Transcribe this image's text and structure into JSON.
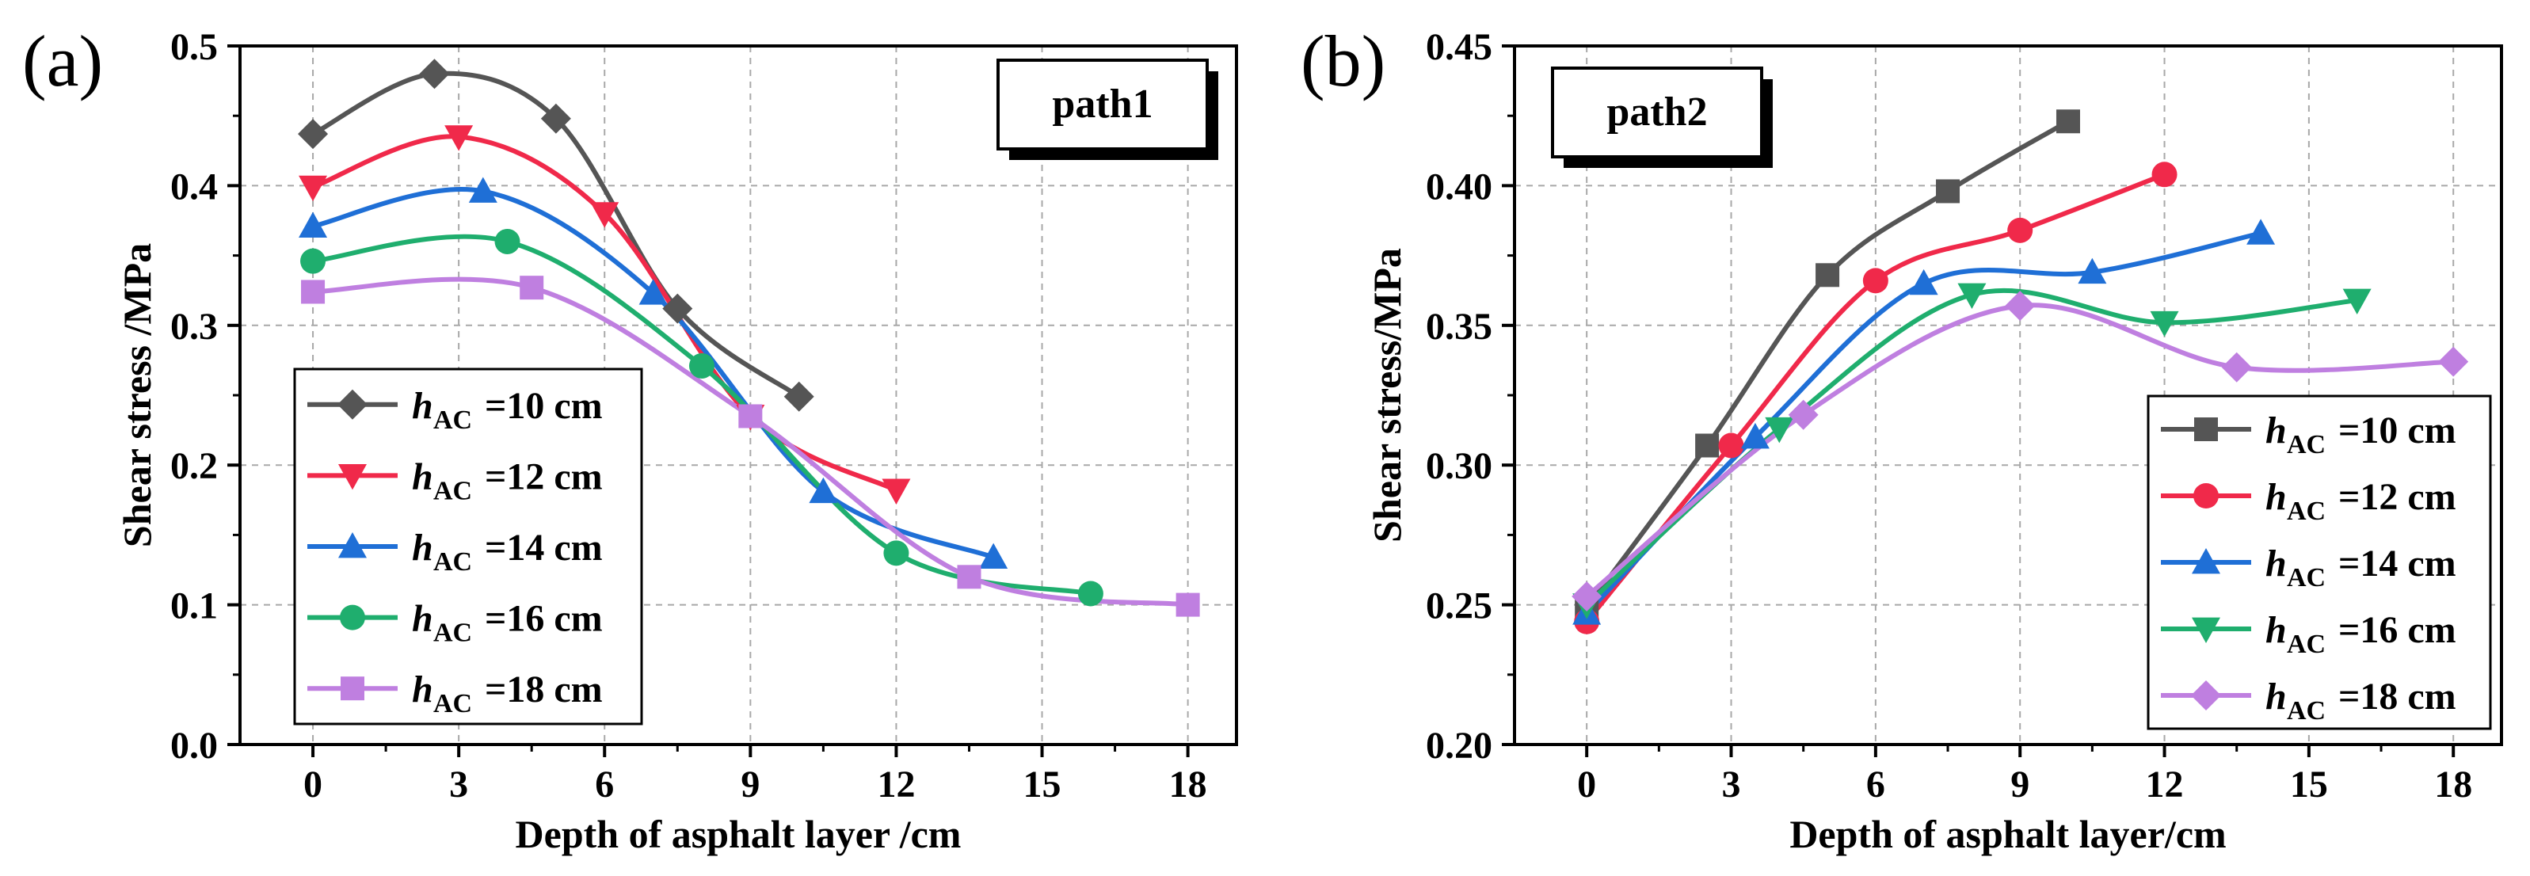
{
  "chart_data": [
    {
      "type": "line",
      "panel_label": "(a)",
      "path_label": "path1",
      "xlabel": "Depth of asphalt layer /cm",
      "ylabel": "Shear stress /MPa",
      "xlim": [
        -1.5,
        19.0
      ],
      "ylim": [
        0.0,
        0.5
      ],
      "xticks": [
        0,
        3,
        6,
        9,
        12,
        15,
        18
      ],
      "yticks": [
        0.0,
        0.1,
        0.2,
        0.3,
        0.4,
        0.5
      ],
      "ytick_labels": [
        "0.0",
        "0.1",
        "0.2",
        "0.3",
        "0.4",
        "0.5"
      ],
      "grid": true,
      "legend_position": "lower-left",
      "series": [
        {
          "name_main": "h",
          "name_sub": "AC",
          "name_rest": "=10 cm",
          "color": "#555555",
          "marker": "diamond",
          "x": [
            0,
            2.5,
            5,
            7.5,
            10
          ],
          "y": [
            0.437,
            0.48,
            0.448,
            0.312,
            0.249
          ]
        },
        {
          "name_main": "h",
          "name_sub": "AC",
          "name_rest": "=12 cm",
          "color": "#f0294a",
          "marker": "triangle-down",
          "x": [
            0,
            3,
            6,
            9,
            12
          ],
          "y": [
            0.399,
            0.435,
            0.38,
            0.235,
            0.182
          ]
        },
        {
          "name_main": "h",
          "name_sub": "AC",
          "name_rest": "=14 cm",
          "color": "#1f6fd6",
          "marker": "triangle-up",
          "x": [
            0,
            3.5,
            7,
            10.5,
            14
          ],
          "y": [
            0.371,
            0.396,
            0.323,
            0.181,
            0.134
          ]
        },
        {
          "name_main": "h",
          "name_sub": "AC",
          "name_rest": "=16 cm",
          "color": "#1fae6e",
          "marker": "circle",
          "x": [
            0,
            4,
            8,
            12,
            16
          ],
          "y": [
            0.346,
            0.36,
            0.271,
            0.137,
            0.108
          ]
        },
        {
          "name_main": "h",
          "name_sub": "AC",
          "name_rest": "=18 cm",
          "color": "#bf7fe0",
          "marker": "square",
          "x": [
            0,
            4.5,
            9,
            13.5,
            18
          ],
          "y": [
            0.324,
            0.327,
            0.235,
            0.12,
            0.1
          ]
        }
      ]
    },
    {
      "type": "line",
      "panel_label": "(b)",
      "path_label": "path2",
      "xlabel": "Depth of asphalt layer/cm",
      "ylabel": "Shear stress/MPa",
      "xlim": [
        -1.5,
        19.0
      ],
      "ylim": [
        0.2,
        0.45
      ],
      "xticks": [
        0,
        3,
        6,
        9,
        12,
        15,
        18
      ],
      "yticks": [
        0.2,
        0.25,
        0.3,
        0.35,
        0.4,
        0.45
      ],
      "ytick_labels": [
        "0.20",
        "0.25",
        "0.30",
        "0.35",
        "0.40",
        "0.45"
      ],
      "grid": true,
      "legend_position": "lower-right",
      "series": [
        {
          "name_main": "h",
          "name_sub": "AC",
          "name_rest": "=10 cm",
          "color": "#555555",
          "marker": "square",
          "x": [
            0,
            2.5,
            5,
            7.5,
            10
          ],
          "y": [
            0.249,
            0.307,
            0.368,
            0.398,
            0.423
          ]
        },
        {
          "name_main": "h",
          "name_sub": "AC",
          "name_rest": "=12 cm",
          "color": "#f0294a",
          "marker": "circle",
          "x": [
            0,
            3,
            6,
            9,
            12
          ],
          "y": [
            0.244,
            0.307,
            0.366,
            0.384,
            0.404
          ]
        },
        {
          "name_main": "h",
          "name_sub": "AC",
          "name_rest": "=14 cm",
          "color": "#1f6fd6",
          "marker": "triangle-up",
          "x": [
            0,
            3.5,
            7,
            10.5,
            14
          ],
          "y": [
            0.247,
            0.31,
            0.365,
            0.369,
            0.383
          ]
        },
        {
          "name_main": "h",
          "name_sub": "AC",
          "name_rest": "=16 cm",
          "color": "#1fae6e",
          "marker": "triangle-down",
          "x": [
            0,
            4,
            8,
            12,
            16
          ],
          "y": [
            0.25,
            0.313,
            0.361,
            0.351,
            0.359
          ]
        },
        {
          "name_main": "h",
          "name_sub": "AC",
          "name_rest": "=18 cm",
          "color": "#bf7fe0",
          "marker": "diamond",
          "x": [
            0,
            4.5,
            9,
            13.5,
            18
          ],
          "y": [
            0.253,
            0.318,
            0.357,
            0.335,
            0.337
          ]
        }
      ]
    }
  ]
}
